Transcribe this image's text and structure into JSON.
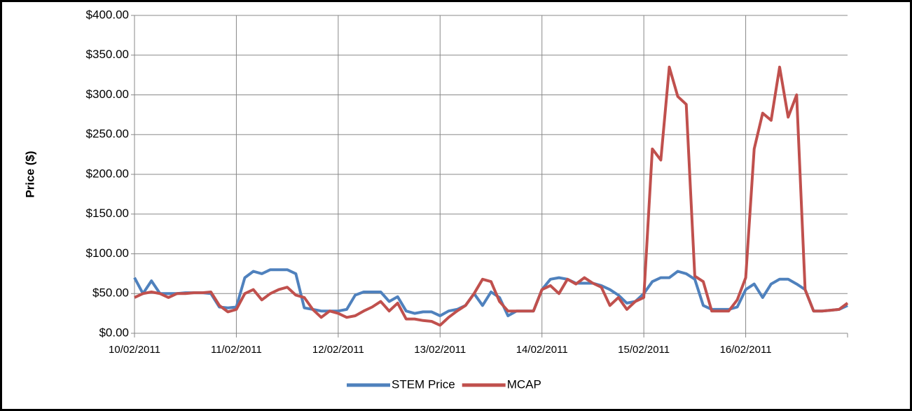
{
  "chart_data": {
    "type": "line",
    "y_label": "Price ($)",
    "categories": [
      "10/02/2011",
      null,
      null,
      null,
      null,
      null,
      null,
      null,
      null,
      null,
      null,
      null,
      "11/02/2011",
      null,
      null,
      null,
      null,
      null,
      null,
      null,
      null,
      null,
      null,
      null,
      "12/02/2011",
      null,
      null,
      null,
      null,
      null,
      null,
      null,
      null,
      null,
      null,
      null,
      "13/02/2011",
      null,
      null,
      null,
      null,
      null,
      null,
      null,
      null,
      null,
      null,
      null,
      "14/02/2011",
      null,
      null,
      null,
      null,
      null,
      null,
      null,
      null,
      null,
      null,
      null,
      "15/02/2011",
      null,
      null,
      null,
      null,
      null,
      null,
      null,
      null,
      null,
      null,
      null,
      "16/02/2011",
      null,
      null,
      null,
      null,
      null,
      null,
      null,
      null,
      null,
      null,
      null,
      null
    ],
    "series": [
      {
        "name": "STEM Price",
        "color": "#4f81bd",
        "values": [
          70,
          50,
          66,
          50,
          50,
          50,
          51,
          51,
          51,
          50,
          33,
          32,
          33,
          70,
          78,
          75,
          80,
          80,
          80,
          75,
          32,
          30,
          28,
          28,
          28,
          30,
          48,
          52,
          52,
          52,
          40,
          46,
          28,
          25,
          27,
          27,
          22,
          28,
          30,
          35,
          50,
          35,
          52,
          45,
          22,
          28,
          28,
          28,
          55,
          68,
          70,
          68,
          63,
          63,
          63,
          60,
          55,
          48,
          38,
          40,
          50,
          65,
          70,
          70,
          78,
          75,
          68,
          35,
          30,
          30,
          30,
          33,
          55,
          62,
          45,
          62,
          68,
          68,
          62,
          55,
          28,
          28,
          29,
          30,
          35
        ]
      },
      {
        "name": "MCAP",
        "color": "#c0504d",
        "values": [
          45,
          50,
          52,
          50,
          45,
          50,
          50,
          51,
          51,
          52,
          35,
          27,
          30,
          50,
          55,
          42,
          50,
          55,
          58,
          48,
          45,
          30,
          20,
          28,
          25,
          20,
          22,
          28,
          33,
          40,
          28,
          38,
          18,
          18,
          16,
          15,
          10,
          20,
          28,
          35,
          50,
          68,
          65,
          40,
          28,
          28,
          28,
          28,
          55,
          60,
          50,
          68,
          62,
          70,
          63,
          58,
          35,
          45,
          30,
          40,
          45,
          232,
          218,
          335,
          298,
          288,
          72,
          65,
          28,
          28,
          28,
          42,
          70,
          232,
          277,
          268,
          335,
          272,
          300,
          55,
          28,
          28,
          29,
          30,
          38
        ]
      }
    ],
    "ylim": [
      0,
      400
    ],
    "yticks": [
      {
        "value": 0,
        "label": "$0.00"
      },
      {
        "value": 50,
        "label": "$50.00"
      },
      {
        "value": 100,
        "label": "$100.00"
      },
      {
        "value": 150,
        "label": "$150.00"
      },
      {
        "value": 200,
        "label": "$200.00"
      },
      {
        "value": 250,
        "label": "$250.00"
      },
      {
        "value": 300,
        "label": "$300.00"
      },
      {
        "value": 350,
        "label": "$350.00"
      },
      {
        "value": 400,
        "label": "$400.00"
      }
    ],
    "grid": true,
    "legend": "bottom"
  }
}
